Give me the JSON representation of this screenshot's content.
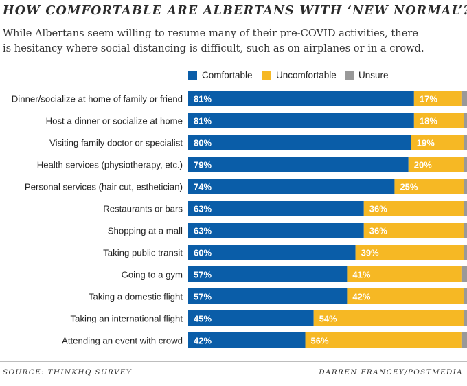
{
  "title": "HOW COMFORTABLE ARE ALBERTANS WITH ‘NEW NORMAL’?",
  "subtitle_lines": [
    "While Albertans seem willing to resume many of their pre-COVID activities, there",
    "is hesitancy where social distancing is difficult, such as on airplanes or in a crowd."
  ],
  "source": "SOURCE: THINKHQ SURVEY",
  "credit": "DARREN FRANCEY/POSTMEDIA",
  "colors": {
    "comfortable": "#0a5da8",
    "uncomfortable": "#f6b824",
    "unsure": "#999999"
  },
  "chart_data": {
    "type": "bar",
    "orientation": "horizontal",
    "stacked": true,
    "title": "HOW COMFORTABLE ARE ALBERTANS WITH ‘NEW NORMAL’?",
    "xlim": [
      0,
      100
    ],
    "legend_position": "top",
    "categories": [
      "Dinner/socialize at home of family or friend",
      "Host a dinner or socialize at home",
      "Visiting family doctor or specialist",
      "Health services (physiotherapy, etc.)",
      "Personal services (hair cut, esthetician)",
      "Restaurants or bars",
      "Shopping at a mall",
      "Taking public transit",
      "Going to a gym",
      "Taking a domestic flight",
      "Taking an international flight",
      "Attending an event with crowd"
    ],
    "series": [
      {
        "name": "Comfortable",
        "values": [
          81,
          81,
          80,
          79,
          74,
          63,
          63,
          60,
          57,
          57,
          45,
          42
        ]
      },
      {
        "name": "Uncomfortable",
        "values": [
          17,
          18,
          19,
          20,
          25,
          36,
          36,
          39,
          41,
          42,
          54,
          56
        ]
      },
      {
        "name": "Unsure",
        "values": [
          2,
          1,
          1,
          1,
          1,
          1,
          1,
          1,
          2,
          1,
          1,
          2
        ]
      }
    ],
    "value_suffix": "%"
  }
}
